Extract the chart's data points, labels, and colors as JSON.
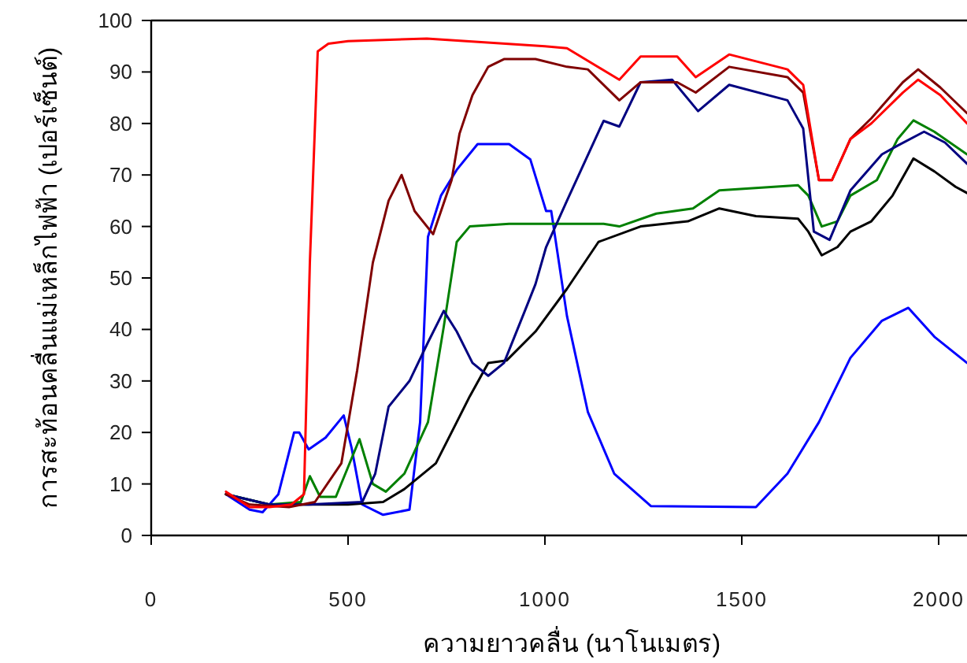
{
  "chart_data": {
    "type": "line",
    "xlabel": "ความยาวคลื่น (นาโนเมตร)",
    "ylabel": "การสะท้อนคลื่นแม่เหล็กไฟฟ้า (เปอร์เซ็นต์)",
    "xlim": [
      0,
      2072
    ],
    "ylim": [
      0,
      100
    ],
    "xticks": [
      0,
      500,
      1000,
      1500,
      2000
    ],
    "yticks": [
      0,
      10,
      20,
      30,
      40,
      50,
      60,
      70,
      80,
      90,
      100
    ],
    "grid": false,
    "marker": "none",
    "line_style": "solid",
    "series": [
      {
        "color": "#0000ff",
        "x": [
          190,
          250,
          283,
          323,
          363,
          376,
          400,
          443,
          489,
          509,
          536,
          589,
          656,
          683,
          703,
          736,
          776,
          829,
          909,
          963,
          1003,
          1016,
          1056,
          1109,
          1176,
          1269,
          1536,
          1616,
          1696,
          1776,
          1856,
          1923,
          1989,
          2072
        ],
        "values": [
          8,
          5,
          4.5,
          8,
          20,
          20,
          16.7,
          19,
          23.3,
          17,
          6,
          4,
          5,
          22,
          58,
          66,
          71,
          76,
          76,
          73,
          63,
          63,
          42.6,
          24,
          12,
          5.7,
          5.5,
          12,
          22,
          34.5,
          41.7,
          44.2,
          38.6,
          33.5
        ]
      },
      {
        "color": "#000000",
        "x": [
          190,
          300,
          500,
          589,
          643,
          723,
          776,
          809,
          856,
          903,
          976,
          1056,
          1136,
          1243,
          1363,
          1443,
          1536,
          1643,
          1669,
          1703,
          1743,
          1776,
          1829,
          1883,
          1936,
          1989,
          2043,
          2072
        ],
        "values": [
          8,
          6,
          6,
          6.5,
          9,
          14,
          22,
          27,
          33.5,
          34,
          39.6,
          47.9,
          57,
          60,
          61,
          63.5,
          62,
          61.5,
          59,
          54.4,
          56,
          59,
          61,
          66,
          73.2,
          70.7,
          67.7,
          66.5
        ]
      },
      {
        "color": "#008000",
        "x": [
          190,
          300,
          380,
          403,
          429,
          469,
          529,
          563,
          596,
          643,
          703,
          743,
          776,
          809,
          909,
          1149,
          1189,
          1283,
          1376,
          1443,
          1643,
          1669,
          1703,
          1743,
          1776,
          1843,
          1896,
          1936,
          1989,
          2072
        ],
        "values": [
          8,
          6,
          6.5,
          11.5,
          7.5,
          7.5,
          18.7,
          10,
          8.5,
          12,
          22,
          40.5,
          57,
          60,
          60.5,
          60.5,
          60,
          62.5,
          63.5,
          67,
          68,
          66,
          60,
          61,
          66,
          69,
          77,
          80.6,
          78.4,
          74
        ]
      },
      {
        "color": "#000080",
        "x": [
          190,
          300,
          400,
          536,
          569,
          603,
          656,
          703,
          743,
          776,
          816,
          856,
          896,
          949,
          976,
          1003,
          1056,
          1149,
          1189,
          1243,
          1323,
          1389,
          1468,
          1616,
          1656,
          1683,
          1723,
          1776,
          1856,
          1896,
          1963,
          2016,
          2072
        ],
        "values": [
          8,
          6,
          6,
          6.5,
          12,
          25,
          30,
          37.5,
          43.6,
          39.6,
          33.5,
          31,
          33.5,
          43.6,
          48.8,
          56,
          65,
          80.5,
          79.4,
          88,
          88.5,
          82.4,
          87.5,
          84.5,
          79,
          59,
          57.4,
          67,
          74,
          75.7,
          78.4,
          76.3,
          72.2
        ]
      },
      {
        "color": "#800000",
        "x": [
          190,
          250,
          350,
          416,
          483,
          523,
          563,
          603,
          636,
          669,
          716,
          763,
          783,
          816,
          856,
          896,
          976,
          1056,
          1109,
          1189,
          1243,
          1336,
          1383,
          1468,
          1616,
          1656,
          1696,
          1729,
          1776,
          1829,
          1909,
          1948,
          2004,
          2072
        ],
        "values": [
          8,
          6,
          5.5,
          6.5,
          14,
          32,
          53,
          65,
          70,
          63,
          58.5,
          69,
          78,
          85.5,
          91,
          92.5,
          92.5,
          91,
          90.5,
          84.5,
          88,
          88,
          86,
          91,
          89,
          86,
          69,
          69,
          77,
          81,
          88,
          90.5,
          87,
          82
        ]
      },
      {
        "color": "#ff0000",
        "x": [
          190,
          250,
          300,
          356,
          388,
          403,
          423,
          450,
          500,
          700,
          800,
          900,
          1000,
          1056,
          1189,
          1243,
          1336,
          1383,
          1468,
          1616,
          1656,
          1696,
          1729,
          1776,
          1829,
          1909,
          1948,
          2004,
          2072
        ],
        "values": [
          8.5,
          5.5,
          5.5,
          6,
          8,
          53,
          94,
          95.5,
          96,
          96.5,
          96,
          95.5,
          95,
          94.6,
          88.5,
          93,
          93,
          89,
          93.4,
          90.5,
          87.5,
          69,
          69,
          77,
          80,
          86,
          88.5,
          85.5,
          80
        ]
      }
    ]
  }
}
